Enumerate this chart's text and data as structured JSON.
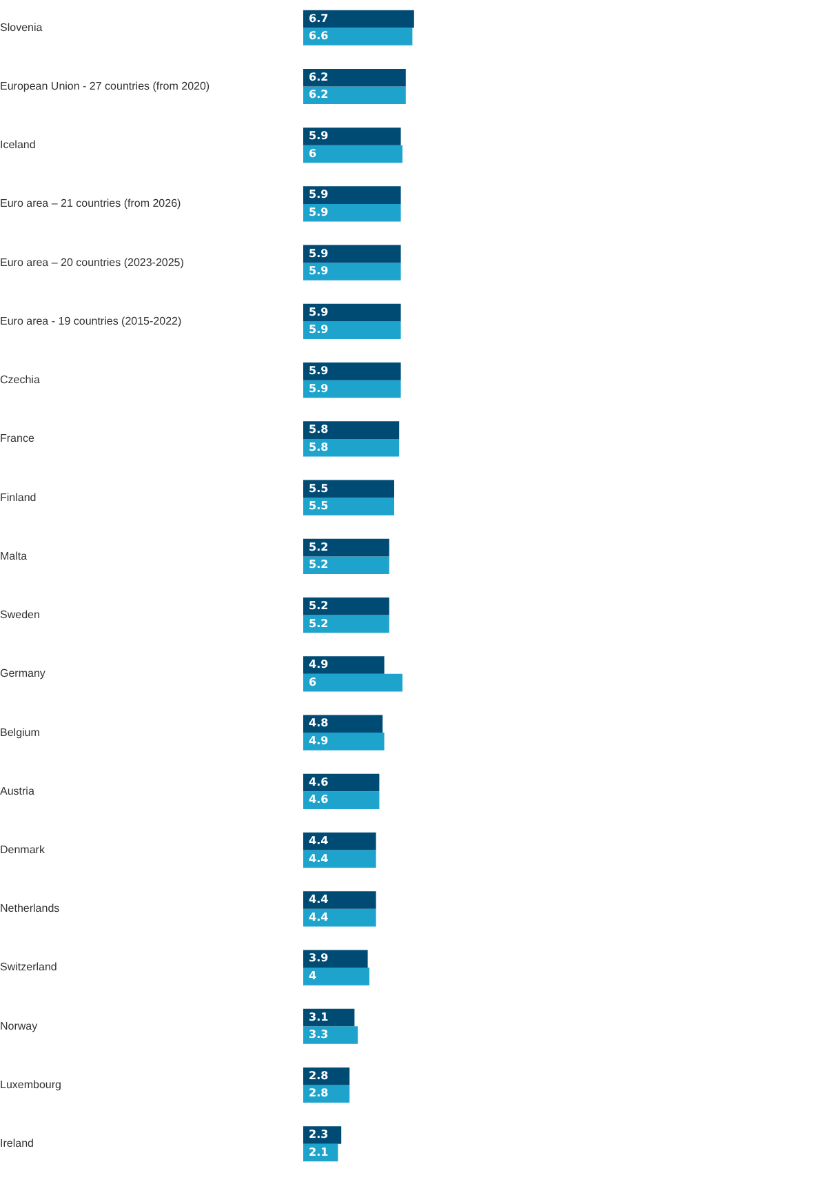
{
  "chart_data": {
    "type": "bar",
    "orientation": "horizontal",
    "data_labels": true,
    "legend": false,
    "tick_labels": "y",
    "categories": [
      "Slovenia",
      "European Union - 27 countries (from 2020)",
      "Iceland",
      "Euro area – 21 countries (from 2026)",
      "Euro area – 20 countries (2023-2025)",
      "Euro area - 19 countries (2015-2022)",
      "Czechia",
      "France",
      "Finland",
      "Malta",
      "Sweden",
      "Germany",
      "Belgium",
      "Austria",
      "Denmark",
      "Netherlands",
      "Switzerland",
      "Norway",
      "Luxembourg",
      "Ireland"
    ],
    "series": [
      {
        "color": "#004b74",
        "values": [
          6.7,
          6.2,
          5.9,
          5.9,
          5.9,
          5.9,
          5.9,
          5.8,
          5.5,
          5.2,
          5.2,
          4.9,
          4.8,
          4.6,
          4.4,
          4.4,
          3.9,
          3.1,
          2.8,
          2.3
        ]
      },
      {
        "color": "#1ea3cd",
        "values": [
          6.6,
          6.2,
          6,
          5.9,
          5.9,
          5.9,
          5.9,
          5.8,
          5.5,
          5.2,
          5.2,
          6,
          4.9,
          4.6,
          4.4,
          4.4,
          4,
          3.3,
          2.8,
          2.1
        ]
      }
    ]
  }
}
